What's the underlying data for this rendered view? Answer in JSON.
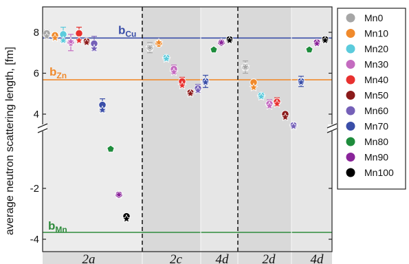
{
  "chart_data": {
    "type": "scatter",
    "ylabel": "average neutron scattering length, [fm]",
    "y_axis_break": true,
    "y_upper_segment": [
      3.2,
      8.8
    ],
    "y_lower_segment": [
      -4,
      0.3
    ],
    "yticks_upper": [
      {
        "value": 8,
        "label": "8"
      },
      {
        "value": 6,
        "label": "6"
      },
      {
        "value": 4,
        "label": "4"
      }
    ],
    "yticks_lower": [
      {
        "value": -2,
        "label": "-2"
      },
      {
        "value": -4,
        "label": "-4"
      }
    ],
    "sections": [
      {
        "label": "2a",
        "shading": "#ececec"
      },
      {
        "label": "2c",
        "shading": "#d9d9d9"
      },
      {
        "label": "4d",
        "shading": "#e6e6e6"
      },
      {
        "label": "2d",
        "shading": "#d9d9d9"
      },
      {
        "label": "4d",
        "shading": "#e6e6e6"
      }
    ],
    "reference_lines": [
      {
        "label": "b",
        "sub": "Cu",
        "value": 7.72,
        "color": "#3a4ea8"
      },
      {
        "label": "b",
        "sub": "Zn",
        "value": 5.68,
        "color": "#f08a2c"
      },
      {
        "label": "b",
        "sub": "Mn",
        "value": -3.73,
        "color": "#2e8b3c"
      }
    ],
    "series": [
      {
        "name": "Mn0",
        "color": "#a6a6a6",
        "marker": "circle"
      },
      {
        "name": "Mn10",
        "color": "#f08a2c",
        "marker": "circle"
      },
      {
        "name": "Mn20",
        "color": "#5bcbdc",
        "marker": "circle"
      },
      {
        "name": "Mn30",
        "color": "#c46bc0",
        "marker": "circle"
      },
      {
        "name": "Mn40",
        "color": "#e8312f",
        "marker": "circle"
      },
      {
        "name": "Mn50",
        "color": "#8b1a1a",
        "marker": "circle"
      },
      {
        "name": "Mn60",
        "color": "#7560b8",
        "marker": "circle"
      },
      {
        "name": "Mn70",
        "color": "#3a4ea8",
        "marker": "circle"
      },
      {
        "name": "Mn80",
        "color": "#1e8c3c",
        "marker": "pentagon"
      },
      {
        "name": "Mn90",
        "color": "#8a249a",
        "marker": "circle"
      },
      {
        "name": "Mn100",
        "color": "#000000",
        "marker": "circle"
      }
    ],
    "points": [
      {
        "section": "2a",
        "series": "Mn0",
        "y": 7.95,
        "err": 0.15,
        "star": 7.8
      },
      {
        "section": "2a",
        "series": "Mn10",
        "y": 7.85,
        "err": 0.1,
        "star": 7.72
      },
      {
        "section": "2a",
        "series": "Mn20",
        "y": 7.9,
        "err": 0.35,
        "star": 7.6
      },
      {
        "section": "2a",
        "series": "Mn30",
        "y": 7.5,
        "err": 0.4,
        "star": 7.55
      },
      {
        "section": "2a",
        "series": "Mn40",
        "y": 7.95,
        "err": 0.3,
        "star": 7.6
      },
      {
        "section": "2a",
        "series": "Mn50",
        "y": 7.55,
        "err": 0.1,
        "star": 7.5
      },
      {
        "section": "2a",
        "series": "Mn60",
        "y": 7.45,
        "err": 0.35,
        "star": 7.2
      },
      {
        "section": "2a",
        "series": "Mn70",
        "y": 4.45,
        "err": 0.3,
        "star": 4.2
      },
      {
        "section": "2a",
        "series": "Mn80",
        "y": -0.45,
        "err": 0,
        "star": null
      },
      {
        "section": "2a",
        "series": "Mn90",
        "y": -2.25,
        "err": 0,
        "star": -2.25
      },
      {
        "section": "2a",
        "series": "Mn100",
        "y": -3.1,
        "err": 0,
        "star": -3.2
      },
      {
        "section": "2c",
        "series": "Mn0",
        "y": 7.25,
        "err": 0.25,
        "star": 7.25
      },
      {
        "section": "2c",
        "series": "Mn10",
        "y": 7.45,
        "err": 0.1,
        "star": 7.5
      },
      {
        "section": "2c",
        "series": "Mn20",
        "y": 6.75,
        "err": 0.15,
        "star": 6.7
      },
      {
        "section": "2c",
        "series": "Mn30",
        "y": 6.2,
        "err": 0.2,
        "star": 6.05
      },
      {
        "section": "2c",
        "series": "Mn40",
        "y": 5.6,
        "err": 0.2,
        "star": 5.4
      },
      {
        "section": "2c",
        "series": "Mn50",
        "y": 5.05,
        "err": 0.1,
        "star": 5.0
      },
      {
        "section": "2c",
        "series": "Mn60",
        "y": 5.25,
        "err": 0.2,
        "star": 5.15
      },
      {
        "section": "2c",
        "series": "Mn70",
        "y": 5.6,
        "err": 0.3,
        "star": 5.55
      },
      {
        "section": "4d",
        "series": "Mn80",
        "y": 7.15,
        "err": 0,
        "star": null
      },
      {
        "section": "4d",
        "series": "Mn90",
        "y": 7.5,
        "err": 0.1,
        "star": 7.5
      },
      {
        "section": "4d",
        "series": "Mn100",
        "y": 7.65,
        "err": 0.1,
        "star": 7.6
      },
      {
        "section": "2d",
        "series": "Mn0",
        "y": 6.3,
        "err": 0.3,
        "star": 6.3
      },
      {
        "section": "2d",
        "series": "Mn10",
        "y": 5.55,
        "err": 0.1,
        "star": 5.3
      },
      {
        "section": "2d",
        "series": "Mn20",
        "y": 4.9,
        "err": 0.15,
        "star": 4.85
      },
      {
        "section": "2d",
        "series": "Mn30",
        "y": 4.5,
        "err": 0.2,
        "star": 4.4
      },
      {
        "section": "2d",
        "series": "Mn40",
        "y": 4.6,
        "err": 0.2,
        "star": 4.5
      },
      {
        "section": "2d",
        "series": "Mn50",
        "y": 4.0,
        "err": 0.1,
        "star": 3.85
      },
      {
        "section": "2d",
        "series": "Mn60",
        "y": 3.45,
        "err": 0.1,
        "star": 3.4
      },
      {
        "section": "2d",
        "series": "Mn70",
        "y": 5.6,
        "err": 0.25,
        "star": 5.55
      },
      {
        "section": "4d",
        "series": "Mn80",
        "y": 7.15,
        "err": 0,
        "star": null,
        "block": 2
      },
      {
        "section": "4d",
        "series": "Mn90",
        "y": 7.5,
        "err": 0.1,
        "star": 7.45,
        "block": 2
      },
      {
        "section": "4d",
        "series": "Mn100",
        "y": 7.65,
        "err": 0.1,
        "star": 7.6,
        "block": 2
      }
    ]
  }
}
